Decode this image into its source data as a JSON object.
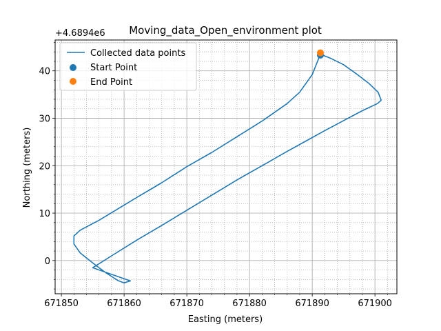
{
  "chart_data": {
    "type": "line",
    "title": "Moving_data_Open_environment plot",
    "xlabel": "Easting (meters)",
    "ylabel": "Northing (meters)",
    "y_offset_label": "+4.6894e6",
    "xlim": [
      671849,
      671903.5
    ],
    "ylim": [
      -7,
      46.5
    ],
    "x_ticks": [
      671850,
      671860,
      671870,
      671880,
      671890,
      671900
    ],
    "x_tick_labels": [
      "671850",
      "671860",
      "671870",
      "671880",
      "671890",
      "671900"
    ],
    "y_ticks": [
      0,
      10,
      20,
      30,
      40
    ],
    "y_tick_labels": [
      "0",
      "10",
      "20",
      "30",
      "40"
    ],
    "x_minor_step": 2,
    "y_minor_step": 2,
    "grid": true,
    "legend_position": "top-left",
    "colors": {
      "line": "#1f77b4",
      "start": "#1f77b4",
      "end": "#ff7f0e"
    },
    "series": [
      {
        "name": "Collected data points",
        "kind": "line",
        "points": [
          [
            671891.3,
            43.5
          ],
          [
            671893,
            42.6
          ],
          [
            671895,
            41.3
          ],
          [
            671897,
            39.4
          ],
          [
            671899,
            37.4
          ],
          [
            671900.5,
            35.5
          ],
          [
            671901,
            33.8
          ],
          [
            671900.4,
            33.1
          ],
          [
            671898,
            31.6
          ],
          [
            671895,
            29.5
          ],
          [
            671892,
            27.4
          ],
          [
            671889,
            25.2
          ],
          [
            671886,
            23.0
          ],
          [
            671882,
            20.0
          ],
          [
            671878,
            17.0
          ],
          [
            671874,
            13.8
          ],
          [
            671870,
            10.6
          ],
          [
            671866,
            7.4
          ],
          [
            671862,
            4.3
          ],
          [
            671858,
            1.0
          ],
          [
            671855,
            -1.5
          ],
          [
            671861,
            -4.3
          ],
          [
            671860,
            -4.7
          ],
          [
            671859,
            -4.2
          ],
          [
            671857,
            -2.5
          ],
          [
            671855,
            -0.5
          ],
          [
            671853,
            1.6
          ],
          [
            671852,
            3.5
          ],
          [
            671852,
            5.2
          ],
          [
            671853,
            6.4
          ],
          [
            671856,
            8.5
          ],
          [
            671859,
            10.9
          ],
          [
            671862,
            13.3
          ],
          [
            671866,
            16.4
          ],
          [
            671870,
            19.8
          ],
          [
            671874,
            22.8
          ],
          [
            671878,
            26.1
          ],
          [
            671882,
            29.4
          ],
          [
            671886,
            33.1
          ],
          [
            671888,
            35.5
          ],
          [
            671890,
            39.2
          ],
          [
            671891.3,
            43.5
          ]
        ]
      },
      {
        "name": "Start Point",
        "kind": "scatter",
        "points": [
          [
            671891.3,
            43.3
          ]
        ]
      },
      {
        "name": "End Point",
        "kind": "scatter",
        "points": [
          [
            671891.3,
            43.8
          ]
        ]
      }
    ]
  }
}
